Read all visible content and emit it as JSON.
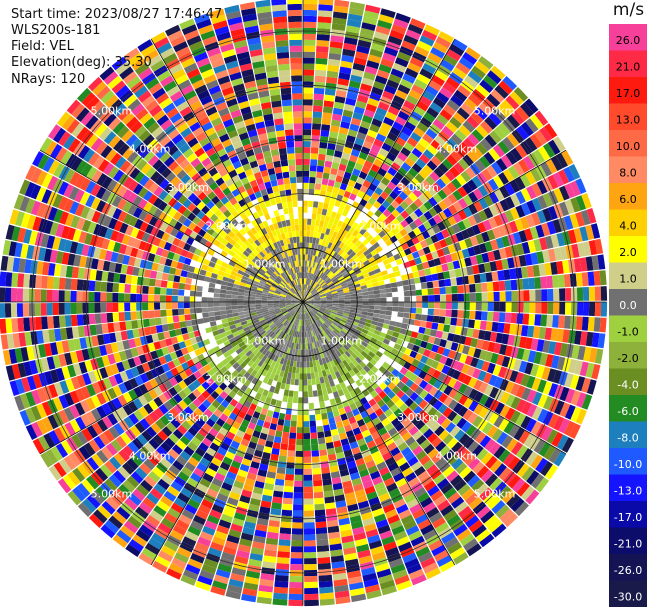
{
  "header": {
    "start_time": "Start time: 2023/08/27 17:46:47",
    "instrument": "WLS200s-181",
    "field": "Field: VEL",
    "elevation": "Elevation(deg): 35.30",
    "nrays": "NRays: 120"
  },
  "chart_data": {
    "type": "heatmap",
    "projection": "polar-ppi",
    "field": "VEL",
    "units": "m/s",
    "rings_km": [
      1.0,
      2.0,
      3.0,
      4.0,
      5.0
    ],
    "ring_labels": [
      "1.00km",
      "2.00km",
      "3.00km",
      "4.00km",
      "5.00km"
    ],
    "max_range_km": 5.6,
    "nrays": 120,
    "spokes_deg": [
      0,
      30,
      60,
      90,
      120,
      150,
      180,
      210,
      240,
      270,
      300,
      330
    ],
    "pattern_regions": [
      {
        "name": "yellow-positive-sector",
        "from_deg": 285,
        "to_deg": 75,
        "r_from_km": 0.3,
        "r_to_km": 1.9,
        "value": 2.0
      },
      {
        "name": "gray-near-zero-ring",
        "from_deg": 0,
        "to_deg": 360,
        "r_from_km": 0.0,
        "r_to_km": 1.2,
        "value": 0.0
      },
      {
        "name": "olive-negative-sector",
        "from_deg": 105,
        "to_deg": 255,
        "r_from_km": 0.3,
        "r_to_km": 1.9,
        "value": -2.0
      },
      {
        "name": "noise-outer-band",
        "from_deg": 0,
        "to_deg": 360,
        "r_from_km": 1.9,
        "r_to_km": 5.6,
        "value": null
      }
    ],
    "colorbar": {
      "label": "m/s",
      "ticks": [
        "26.0",
        "21.0",
        "17.0",
        "13.0",
        "10.0",
        "8.0",
        "6.0",
        "4.0",
        "2.0",
        "1.0",
        "0.0",
        "-1.0",
        "-2.0",
        "-4.0",
        "-6.0",
        "-8.0",
        "-10.0",
        "-13.0",
        "-17.0",
        "-21.0",
        "-26.0",
        "-30.0"
      ],
      "colors": [
        "#f7409a",
        "#ff2a45",
        "#ff1a0f",
        "#ff4b2b",
        "#ff6a46",
        "#ff8a64",
        "#ffa512",
        "#ffd000",
        "#ffff00",
        "#cfcf8a",
        "#707070",
        "#9fd040",
        "#8db13a",
        "#6b8e23",
        "#228b22",
        "#1e7fbf",
        "#1e5aff",
        "#1414ff",
        "#0a0aa8",
        "#0c0c6a",
        "#141455",
        "#1a1a4a"
      ]
    }
  }
}
